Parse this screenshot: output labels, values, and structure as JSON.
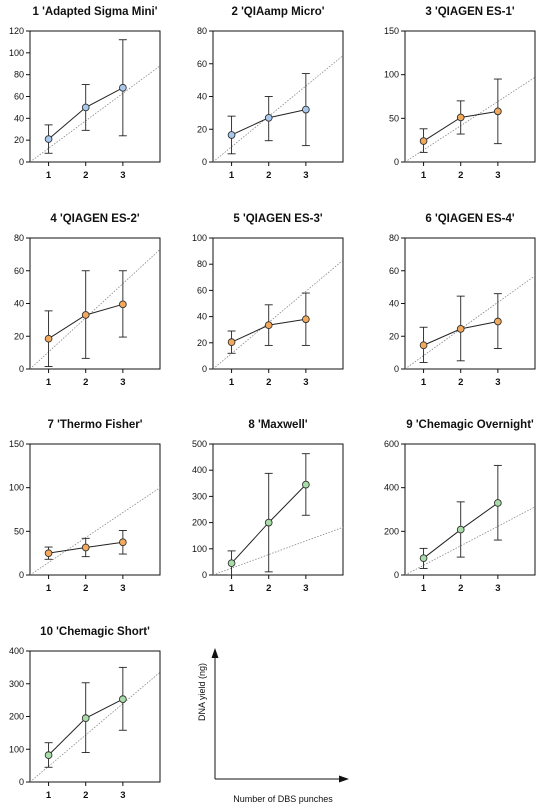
{
  "chart_data": [
    {
      "type": "line",
      "title": "1 'Adapted Sigma Mini'",
      "x": [
        1,
        2,
        3
      ],
      "y": [
        21,
        50,
        68
      ],
      "err_low": [
        8,
        29,
        24
      ],
      "err_high": [
        34,
        71,
        112
      ],
      "reference_line": {
        "x": [
          0.5,
          4
        ],
        "y": [
          0,
          88
        ]
      },
      "marker_color": "#a9c8ee",
      "ylim": [
        0,
        120
      ],
      "yticks": [
        0,
        20,
        40,
        60,
        80,
        100,
        120
      ],
      "xlim": [
        0.5,
        4
      ],
      "xticks": [
        1,
        2,
        3
      ]
    },
    {
      "type": "line",
      "title": "2 'QIAamp Micro'",
      "x": [
        1,
        2,
        3
      ],
      "y": [
        16.5,
        27,
        32
      ],
      "err_low": [
        5,
        13,
        10
      ],
      "err_high": [
        28,
        40,
        54
      ],
      "reference_line": {
        "x": [
          0.5,
          4
        ],
        "y": [
          0,
          65
        ]
      },
      "marker_color": "#a9c8ee",
      "ylim": [
        0,
        80
      ],
      "yticks": [
        0,
        20,
        40,
        60,
        80
      ],
      "xlim": [
        0.5,
        4
      ],
      "xticks": [
        1,
        2,
        3
      ]
    },
    {
      "type": "line",
      "title": "3 'QIAGEN ES-1'",
      "x": [
        1,
        2,
        3
      ],
      "y": [
        24,
        51,
        58
      ],
      "err_low": [
        11,
        32,
        21
      ],
      "err_high": [
        38,
        70,
        95
      ],
      "reference_line": {
        "x": [
          0.5,
          4
        ],
        "y": [
          0,
          97
        ]
      },
      "marker_color": "#f3a95b",
      "ylim": [
        0,
        150
      ],
      "yticks": [
        0,
        50,
        100,
        150
      ],
      "xlim": [
        0.5,
        4
      ],
      "xticks": [
        1,
        2,
        3
      ]
    },
    {
      "type": "line",
      "title": "4 'QIAGEN ES-2'",
      "x": [
        1,
        2,
        3
      ],
      "y": [
        18.5,
        33,
        39.5
      ],
      "err_low": [
        1.5,
        6.5,
        19.5
      ],
      "err_high": [
        35.5,
        60,
        60
      ],
      "reference_line": {
        "x": [
          0.5,
          4
        ],
        "y": [
          0,
          73
        ]
      },
      "marker_color": "#f3a95b",
      "ylim": [
        0,
        80
      ],
      "yticks": [
        0,
        20,
        40,
        60,
        80
      ],
      "xlim": [
        0.5,
        4
      ],
      "xticks": [
        1,
        2,
        3
      ]
    },
    {
      "type": "line",
      "title": "5 'QIAGEN ES-3'",
      "x": [
        1,
        2,
        3
      ],
      "y": [
        20.5,
        33.5,
        38
      ],
      "err_low": [
        12,
        18,
        18
      ],
      "err_high": [
        29,
        49,
        58
      ],
      "reference_line": {
        "x": [
          0.5,
          4
        ],
        "y": [
          0,
          83
        ]
      },
      "marker_color": "#f3a95b",
      "ylim": [
        0,
        100
      ],
      "yticks": [
        0,
        20,
        40,
        60,
        80,
        100
      ],
      "xlim": [
        0.5,
        4
      ],
      "xticks": [
        1,
        2,
        3
      ]
    },
    {
      "type": "line",
      "title": "6 'QIAGEN ES-4'",
      "x": [
        1,
        2,
        3
      ],
      "y": [
        14.5,
        24.5,
        29
      ],
      "err_low": [
        4,
        5,
        12.5
      ],
      "err_high": [
        25.5,
        44.5,
        46
      ],
      "reference_line": {
        "x": [
          0.5,
          4
        ],
        "y": [
          0,
          57
        ]
      },
      "marker_color": "#f3a95b",
      "ylim": [
        0,
        80
      ],
      "yticks": [
        0,
        20,
        40,
        60,
        80
      ],
      "xlim": [
        0.5,
        4
      ],
      "xticks": [
        1,
        2,
        3
      ]
    },
    {
      "type": "line",
      "title": "7 'Thermo Fisher'",
      "x": [
        1,
        2,
        3
      ],
      "y": [
        25,
        31.5,
        37.5
      ],
      "err_low": [
        18,
        21,
        24
      ],
      "err_high": [
        32,
        42,
        51
      ],
      "reference_line": {
        "x": [
          0.5,
          4
        ],
        "y": [
          0,
          100
        ]
      },
      "marker_color": "#f3a95b",
      "ylim": [
        0,
        150
      ],
      "yticks": [
        0,
        50,
        100,
        150
      ],
      "xlim": [
        0.5,
        4
      ],
      "xticks": [
        1,
        2,
        3
      ]
    },
    {
      "type": "line",
      "title": "8 'Maxwell'",
      "x": [
        1,
        2,
        3
      ],
      "y": [
        45,
        200,
        345
      ],
      "err_low": [
        0,
        12,
        228
      ],
      "err_high": [
        92,
        388,
        463
      ],
      "reference_line": {
        "x": [
          0.5,
          4
        ],
        "y": [
          0,
          182
        ]
      },
      "marker_color": "#a8dca8",
      "ylim": [
        0,
        500
      ],
      "yticks": [
        0,
        100,
        200,
        300,
        400,
        500
      ],
      "xlim": [
        0.5,
        4
      ],
      "xticks": [
        1,
        2,
        3
      ]
    },
    {
      "type": "line",
      "title": "9 'Chemagic Overnight'",
      "x": [
        1,
        2,
        3
      ],
      "y": [
        77,
        208,
        330
      ],
      "err_low": [
        30,
        82,
        160
      ],
      "err_high": [
        122,
        335,
        502
      ],
      "reference_line": {
        "x": [
          0.5,
          4
        ],
        "y": [
          0,
          312
        ]
      },
      "marker_color": "#a8dca8",
      "ylim": [
        0,
        600
      ],
      "yticks": [
        0,
        200,
        400,
        600
      ],
      "xlim": [
        0.5,
        4
      ],
      "xticks": [
        1,
        2,
        3
      ]
    },
    {
      "type": "line",
      "title": "10 'Chemagic Short'",
      "x": [
        1,
        2,
        3
      ],
      "y": [
        82,
        195,
        253
      ],
      "err_low": [
        45,
        90,
        158
      ],
      "err_high": [
        120,
        303,
        350
      ],
      "reference_line": {
        "x": [
          0.5,
          4
        ],
        "y": [
          0,
          335
        ]
      },
      "marker_color": "#a8dca8",
      "ylim": [
        0,
        400
      ],
      "yticks": [
        0,
        100,
        200,
        300,
        400
      ],
      "xlim": [
        0.5,
        4
      ],
      "xticks": [
        1,
        2,
        3
      ]
    }
  ],
  "legend": {
    "ylabel": "DNA yield (ng)",
    "xlabel": "Number of DBS punches"
  },
  "colors": {
    "line": "#222222",
    "axis": "#111111",
    "reference": "#888888",
    "marker_edge": "#333333"
  }
}
